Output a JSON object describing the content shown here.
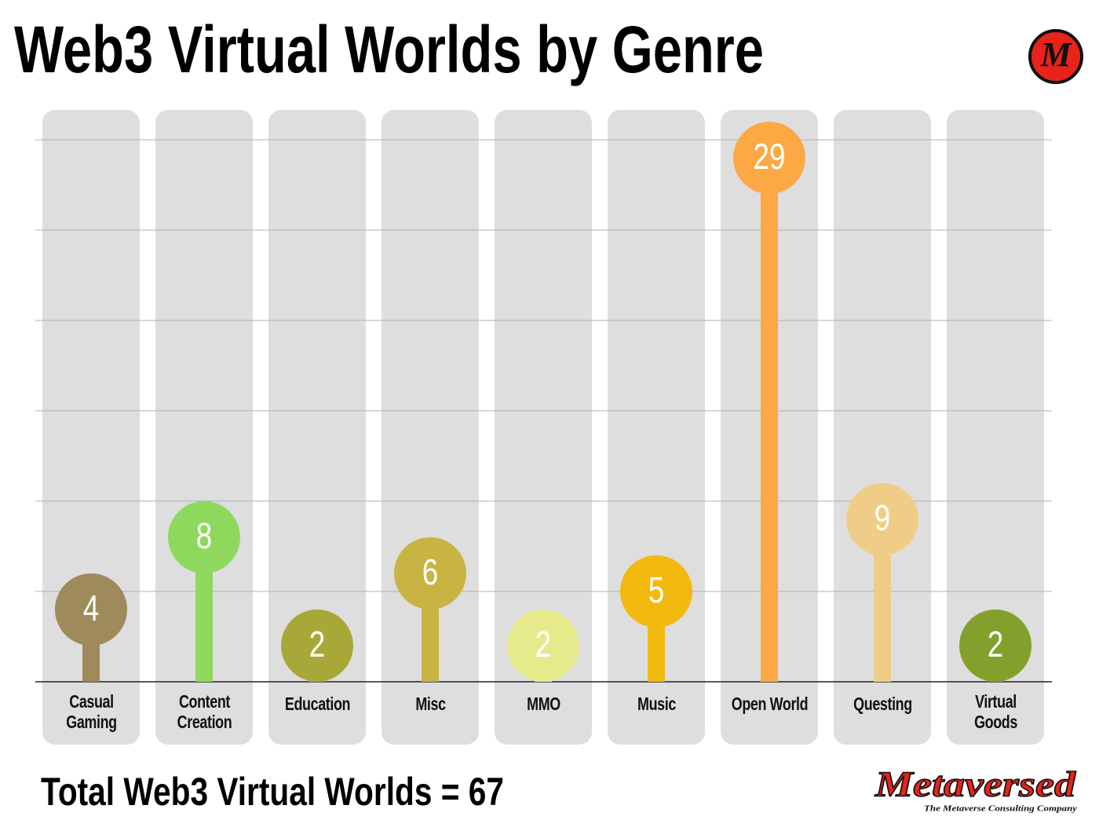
{
  "chart_data": {
    "type": "lollipop",
    "title": "Web3 Virtual Worlds by Genre",
    "categories": [
      "Casual Gaming",
      "Content Creation",
      "Education",
      "Misc",
      "MMO",
      "Music",
      "Open World",
      "Questing",
      "Virtual Goods"
    ],
    "values": [
      4,
      8,
      2,
      6,
      2,
      5,
      29,
      9,
      2
    ],
    "colors": [
      "#9e8a5a",
      "#8fd85e",
      "#a8a838",
      "#c9b443",
      "#e6ea8c",
      "#f2b90f",
      "#fca845",
      "#efcd86",
      "#84a02c"
    ],
    "ylim": [
      0,
      30
    ],
    "yticks": [
      0,
      5,
      10,
      15,
      20,
      25,
      30
    ],
    "grid": true,
    "footer": "Total Web3 Virtual Worlds = 67",
    "logo": "M",
    "brand": "Metaversed",
    "tagline": "The Metaverse Consulting Company"
  }
}
